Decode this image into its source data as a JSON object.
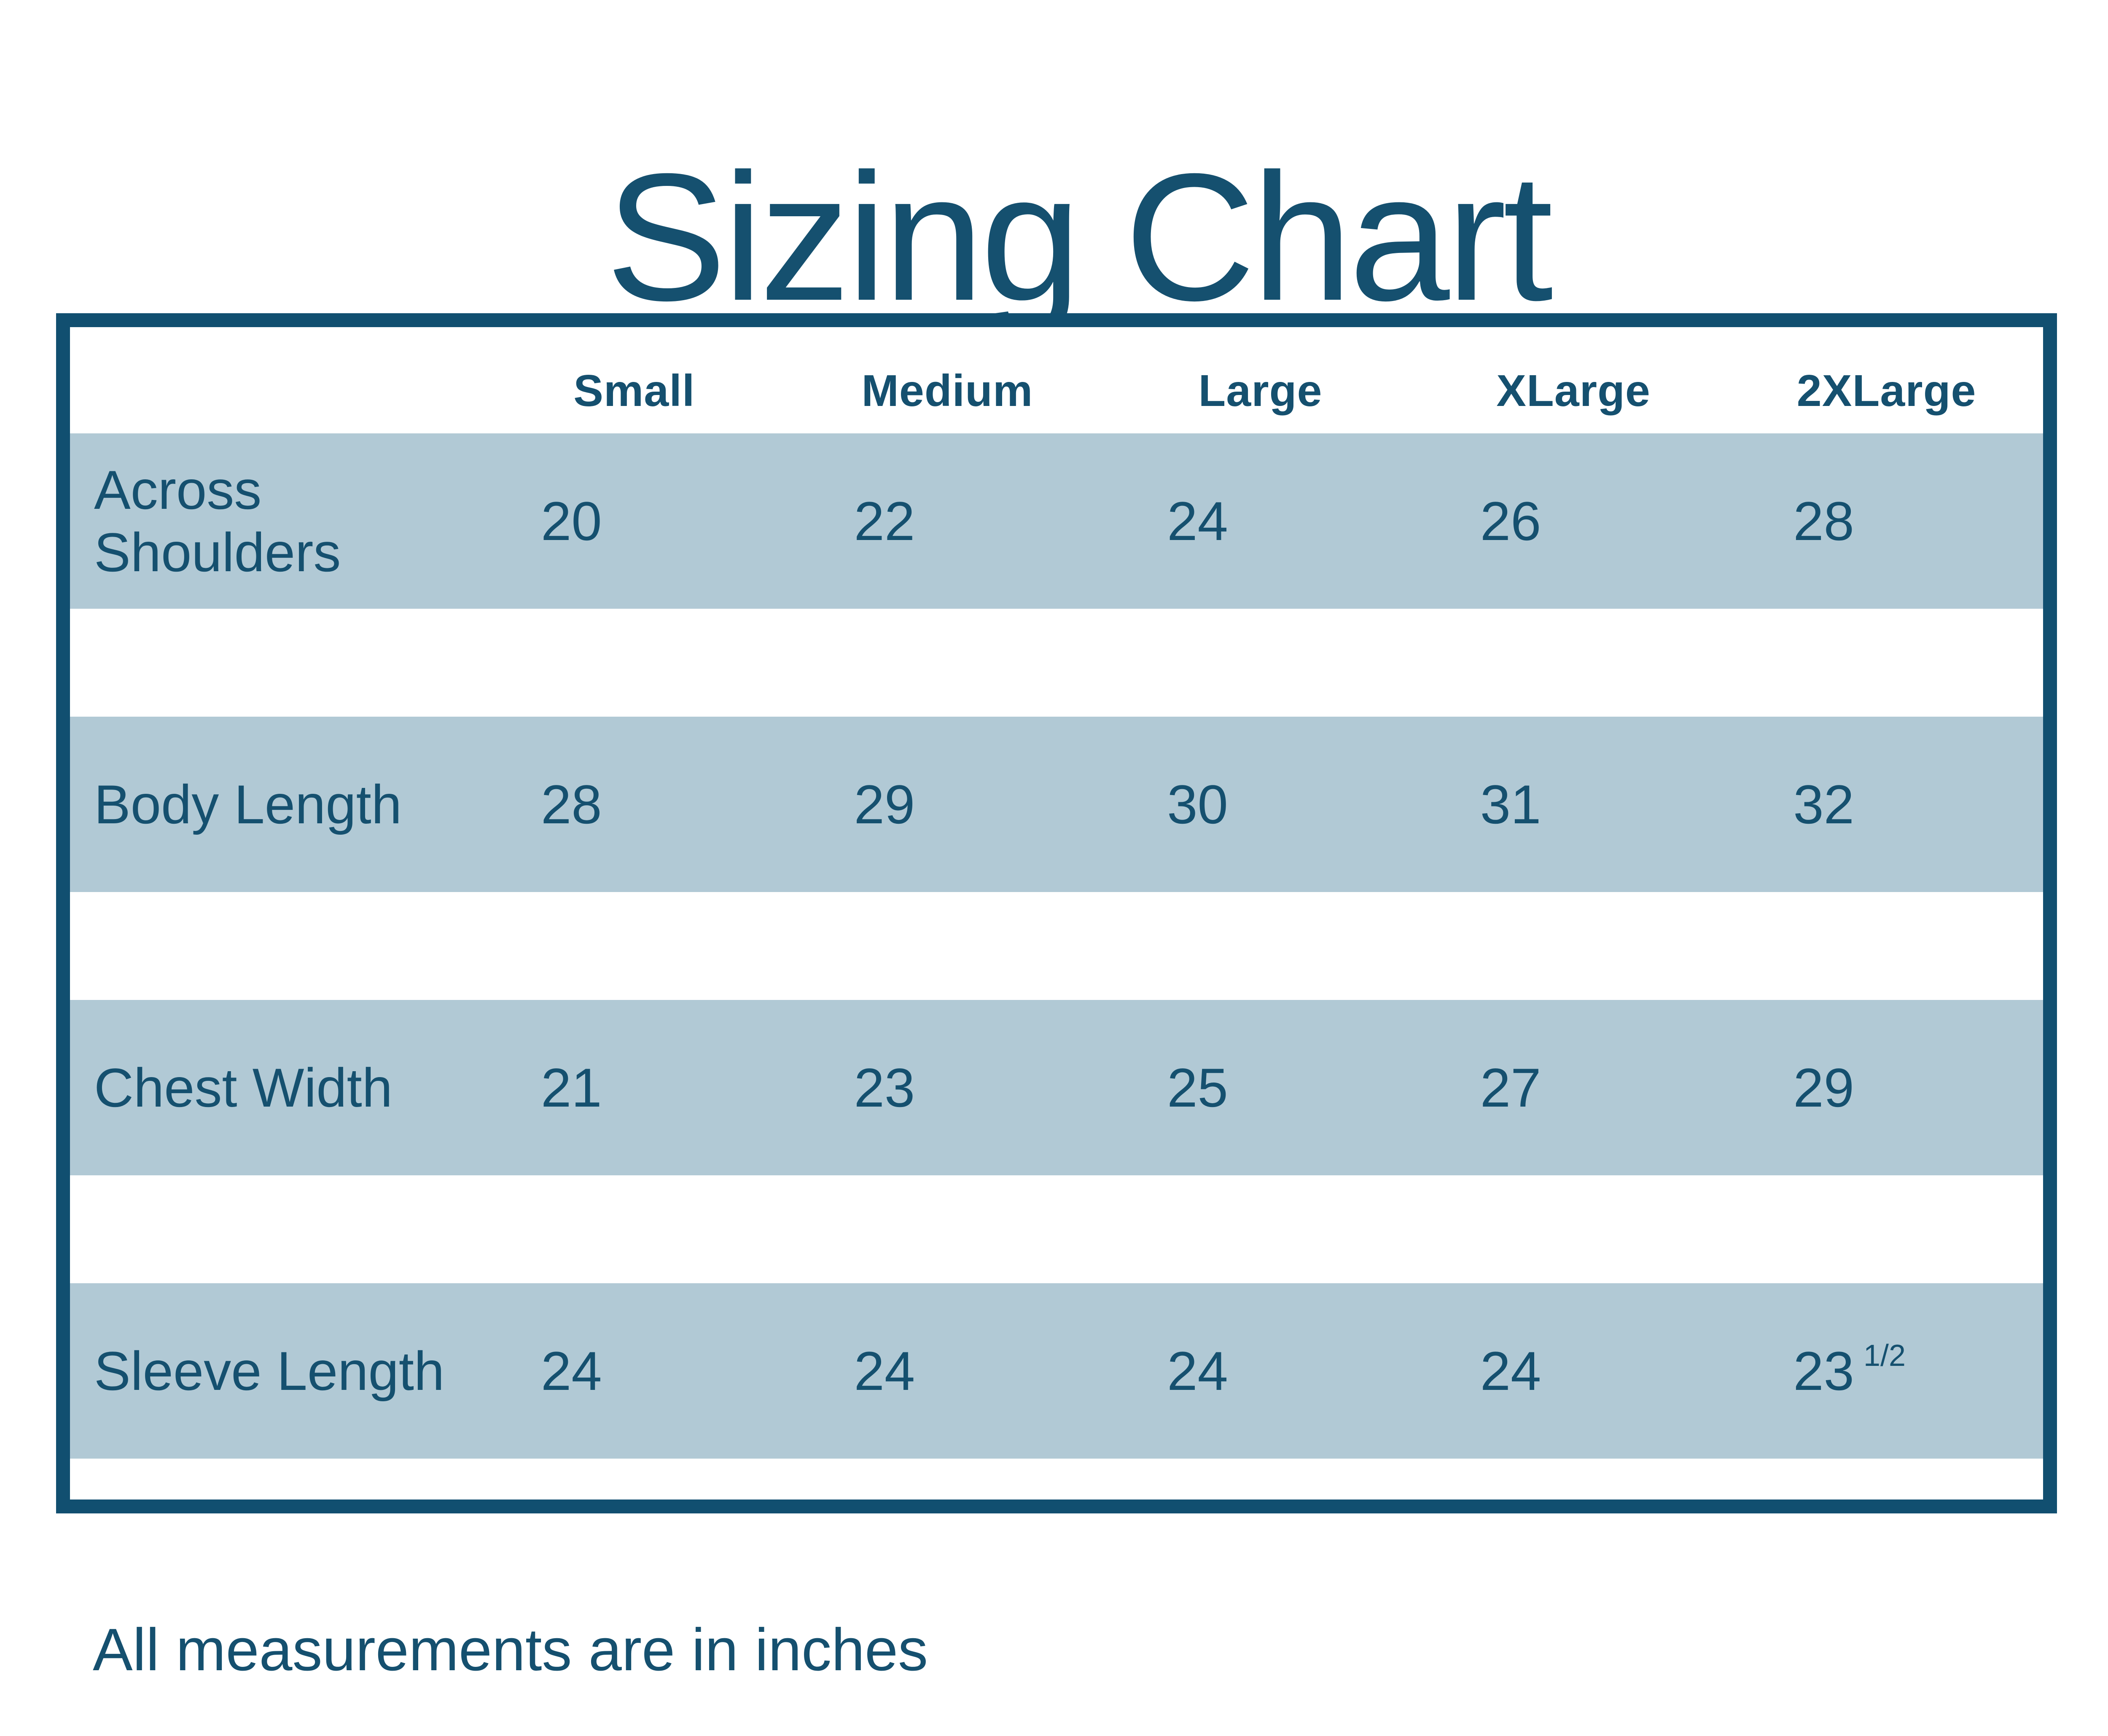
{
  "colors": {
    "ink": "#15506f",
    "row_blue": "#b1c9d5",
    "table_border": "#114f70",
    "background": "#ffffff"
  },
  "chart_data": {
    "type": "table",
    "title": "Sizing Chart",
    "columns": [
      "Small",
      "Medium",
      "Large",
      "XLarge",
      "2XLarge"
    ],
    "rows": [
      {
        "label": "Across Shoulders",
        "values": [
          "20",
          "22",
          "24",
          "26",
          "28"
        ]
      },
      {
        "label": "Body Length",
        "values": [
          "28",
          "29",
          "30",
          "31",
          "32"
        ]
      },
      {
        "label": "Chest Width",
        "values": [
          "21",
          "23",
          "25",
          "27",
          "29"
        ]
      },
      {
        "label": "Sleeve Length",
        "values": [
          "24",
          "24",
          "24",
          "24",
          "23"
        ],
        "last_value_sup": "1/2",
        "last_value_full": "23 1/2"
      }
    ],
    "note": "All measurements are in inches",
    "layout": "Alternating light-blue data bands separated by white spacer bands inside a dark blue frame"
  }
}
